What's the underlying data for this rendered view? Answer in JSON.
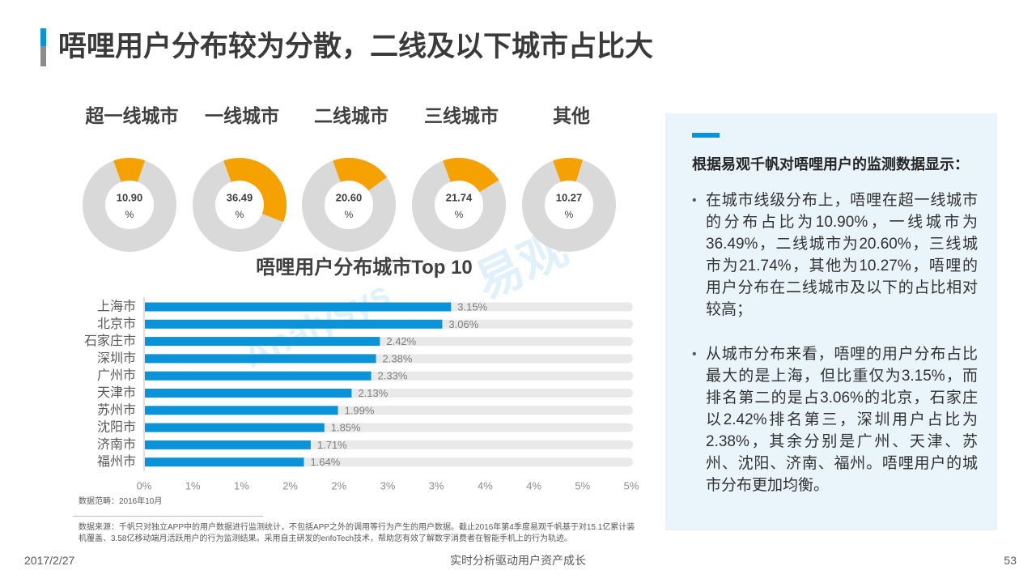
{
  "title": "唔哩用户分布较为分散，二线及以下城市占比大",
  "colors": {
    "accent": "#0A93D8",
    "highlight": "#F5A100",
    "muted": "#D9D9D9",
    "track": "#E9E9E9",
    "title_bar_gray": "#8C8C8C",
    "panel_bg": "#EAF4FB"
  },
  "chart_data": [
    {
      "type": "pie",
      "variant": "donut",
      "categories": [
        "超一线城市",
        "一线城市",
        "二线城市",
        "三线城市",
        "其他"
      ],
      "values": [
        10.9,
        36.49,
        20.6,
        21.74,
        10.27
      ],
      "value_labels": [
        "10.90",
        "36.49",
        "20.60",
        "21.74",
        "10.27"
      ],
      "unit": "%",
      "colors": {
        "share": "#F5A100",
        "rest": "#D9D9D9"
      }
    },
    {
      "type": "bar",
      "orientation": "horizontal",
      "title": "唔哩用户分布城市Top 10",
      "categories": [
        "上海市",
        "北京市",
        "石家庄市",
        "深圳市",
        "广州市",
        "天津市",
        "苏州市",
        "沈阳市",
        "济南市",
        "福州市"
      ],
      "values": [
        3.15,
        3.06,
        2.42,
        2.38,
        2.33,
        2.13,
        1.99,
        1.85,
        1.71,
        1.64
      ],
      "value_labels": [
        "3.15%",
        "3.06%",
        "2.42%",
        "2.38%",
        "2.33%",
        "2.13%",
        "1.99%",
        "1.85%",
        "1.71%",
        "1.64%"
      ],
      "xlim": [
        0,
        5
      ],
      "xticks": [
        0,
        0.5,
        1,
        1.5,
        2,
        2.5,
        3,
        3.5,
        4,
        4.5,
        5
      ],
      "xtick_labels": [
        "0%",
        "1%",
        "1%",
        "2%",
        "2%",
        "3%",
        "3%",
        "4%",
        "4%",
        "5%",
        "5%"
      ],
      "grid": false,
      "colors": {
        "bar": "#0A93D8",
        "track": "#E9E9E9"
      }
    }
  ],
  "data_scope": "数据范畴：2016年10月",
  "data_source": "数据来源：千帆只对独立APP中的用户数据进行监测统计，不包括APP之外的调用等行为产生的用户数据。截止2016年第4季度易观千帆基于对15.1亿累计装机覆盖、3.58亿移动端月活跃用户的行为监测结果。采用自主研发的enfoTech技术，帮助您有效了解数字消费者在智能手机上的行为轨迹。",
  "panel": {
    "heading": "根据易观千帆对唔哩用户的监测数据显示：",
    "bullets": [
      "在城市线级分布上，唔哩在超一线城市的分布占比为10.90%，一线城市为36.49%，二线城市为20.60%，三线城市为21.74%，其他为10.27%，唔哩的用户分布在二线城市及以下的占比相对较高；",
      "从城市分布来看，唔哩的用户分布占比最大的是上海，但比重仅为3.15%，而排名第二的是占3.06%的北京，石家庄以2.42%排名第三，深圳用户占比为2.38%，其余分别是广州、天津、苏州、沈阳、济南、福州。唔哩用户的城市分布更加均衡。"
    ]
  },
  "footer": {
    "date": "2017/2/27",
    "slogan": "实时分析驱动用户资产成长",
    "page": "53"
  },
  "watermark": {
    "brand_cn": "易观",
    "brand_en": "Analysys"
  }
}
